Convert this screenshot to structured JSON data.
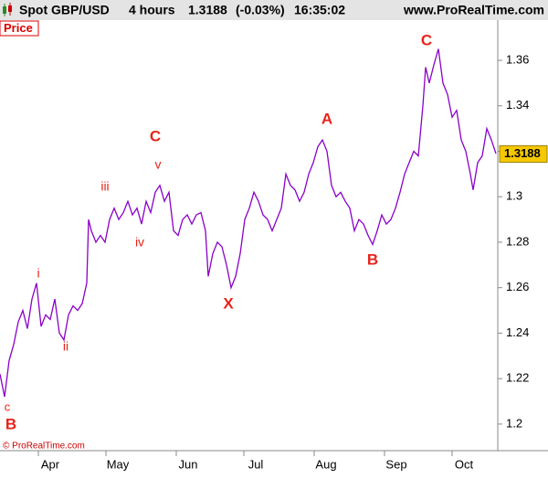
{
  "header": {
    "symbol": "Spot GBP/USD",
    "timeframe": "4 hours",
    "last": 1.3188,
    "change": "(-0.03%)",
    "time": "16:35:02",
    "site": "www.ProRealTime.com"
  },
  "chart_data": {
    "type": "line",
    "panel_label": "Price",
    "copyright": "© ProRealTime.com",
    "x": [
      0,
      5,
      10,
      15,
      20,
      25,
      30,
      35,
      40,
      45,
      50,
      55,
      60,
      65,
      70,
      75,
      80,
      85,
      90,
      95,
      97,
      100,
      105,
      110,
      115,
      120,
      125,
      130,
      135,
      140,
      145,
      150,
      155,
      160,
      165,
      170,
      175,
      180,
      185,
      190,
      195,
      200,
      205,
      210,
      215,
      220,
      225,
      228,
      233,
      238,
      243,
      248,
      253,
      258,
      263,
      268,
      273,
      278,
      283,
      288,
      293,
      298,
      303,
      308,
      313,
      318,
      323,
      328,
      333,
      338,
      343,
      348,
      353,
      358,
      363,
      368,
      373,
      378,
      383,
      388,
      393,
      398,
      403,
      408,
      413,
      418,
      423,
      428,
      433,
      438,
      443,
      448,
      453,
      458,
      463,
      466,
      470,
      475,
      480,
      485,
      490,
      495,
      500,
      505,
      510,
      515,
      518,
      523,
      528,
      533,
      538,
      543
    ],
    "series": [
      {
        "name": "Spot GBP/USD",
        "color": "#8a00c8",
        "values": [
          1.222,
          1.212,
          1.228,
          1.235,
          1.245,
          1.25,
          1.242,
          1.255,
          1.262,
          1.243,
          1.248,
          1.246,
          1.255,
          1.24,
          1.237,
          1.248,
          1.252,
          1.25,
          1.253,
          1.262,
          1.29,
          1.285,
          1.28,
          1.283,
          1.28,
          1.29,
          1.295,
          1.29,
          1.293,
          1.298,
          1.292,
          1.295,
          1.288,
          1.298,
          1.293,
          1.302,
          1.305,
          1.298,
          1.302,
          1.285,
          1.283,
          1.29,
          1.292,
          1.288,
          1.292,
          1.293,
          1.285,
          1.265,
          1.275,
          1.28,
          1.278,
          1.27,
          1.26,
          1.265,
          1.275,
          1.29,
          1.295,
          1.302,
          1.298,
          1.292,
          1.29,
          1.285,
          1.29,
          1.295,
          1.31,
          1.305,
          1.303,
          1.298,
          1.302,
          1.31,
          1.315,
          1.322,
          1.325,
          1.32,
          1.305,
          1.3,
          1.302,
          1.298,
          1.295,
          1.285,
          1.29,
          1.288,
          1.283,
          1.279,
          1.285,
          1.292,
          1.288,
          1.29,
          1.295,
          1.302,
          1.31,
          1.315,
          1.32,
          1.318,
          1.34,
          1.357,
          1.35,
          1.358,
          1.365,
          1.35,
          1.345,
          1.335,
          1.338,
          1.325,
          1.32,
          1.31,
          1.303,
          1.315,
          1.318,
          1.33,
          1.325,
          1.319
        ]
      }
    ],
    "xlim": [
      0,
      545
    ],
    "xticks": [
      {
        "value": 42,
        "label": "Apr"
      },
      {
        "value": 116,
        "label": "May"
      },
      {
        "value": 193,
        "label": "Jun"
      },
      {
        "value": 267,
        "label": "Jul"
      },
      {
        "value": 344,
        "label": "Aug"
      },
      {
        "value": 421,
        "label": "Sep"
      },
      {
        "value": 495,
        "label": "Oct"
      }
    ],
    "ylim": [
      1.1883,
      1.3777
    ],
    "yticks": [
      1.2,
      1.22,
      1.24,
      1.26,
      1.28,
      1.3,
      1.32,
      1.34,
      1.36
    ],
    "grid": false,
    "annotations": [
      "c",
      "B",
      "i",
      "ii",
      "iii",
      "iv",
      "C",
      "v",
      "X",
      "A",
      "B",
      "C"
    ]
  }
}
